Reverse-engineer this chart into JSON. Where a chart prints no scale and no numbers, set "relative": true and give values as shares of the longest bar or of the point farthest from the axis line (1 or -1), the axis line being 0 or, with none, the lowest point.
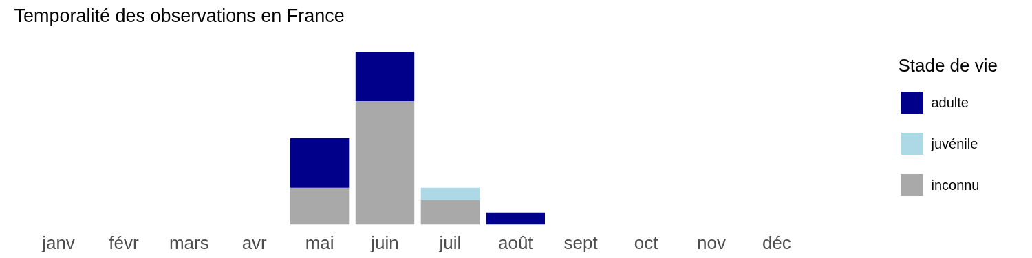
{
  "chart_data": {
    "type": "bar",
    "title": "Temporalité des observations en France",
    "legend_title": "Stade de vie",
    "relative": true,
    "stacked": true,
    "legend": "right",
    "grid": false,
    "categories": [
      "janv",
      "févr",
      "mars",
      "avr",
      "mai",
      "juin",
      "juil",
      "août",
      "sept",
      "oct",
      "nov",
      "déc"
    ],
    "series": [
      {
        "name": "inconnu",
        "color": "#a9a9a9",
        "values": [
          null,
          null,
          null,
          null,
          0.214,
          0.714,
          0.143,
          null,
          null,
          null,
          null,
          null
        ]
      },
      {
        "name": "juvénile",
        "color": "#add8e6",
        "values": [
          null,
          null,
          null,
          null,
          null,
          null,
          0.071,
          null,
          null,
          null,
          null,
          null
        ]
      },
      {
        "name": "adulte",
        "color": "#00008b",
        "values": [
          null,
          null,
          null,
          null,
          0.286,
          0.286,
          null,
          0.071,
          null,
          null,
          null,
          null
        ]
      }
    ]
  }
}
